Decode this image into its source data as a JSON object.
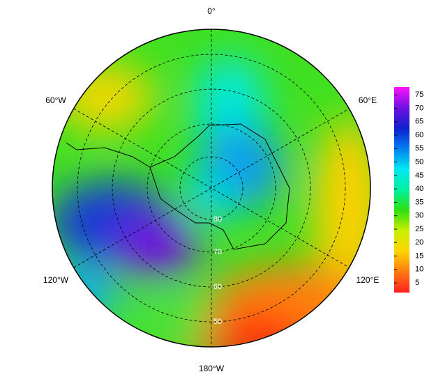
{
  "map": {
    "longitude_labels": [
      "0°",
      "60°E",
      "120°E",
      "180°W",
      "120°W",
      "60°W"
    ],
    "latitude_labels": [
      "80",
      "70",
      "60",
      "50"
    ]
  },
  "colorbar": {
    "clim": [
      1.4,
      77.9
    ],
    "ticks": [
      5,
      10,
      15,
      20,
      25,
      30,
      35,
      40,
      45,
      50,
      55,
      60,
      65,
      70,
      75
    ],
    "colors": [
      "#ff2020",
      "#ff7a10",
      "#ffd400",
      "#c8f000",
      "#30e010",
      "#00f0a0",
      "#00e8f0",
      "#0080f0",
      "#1020d0",
      "#7010e0",
      "#ff10ff"
    ]
  }
}
